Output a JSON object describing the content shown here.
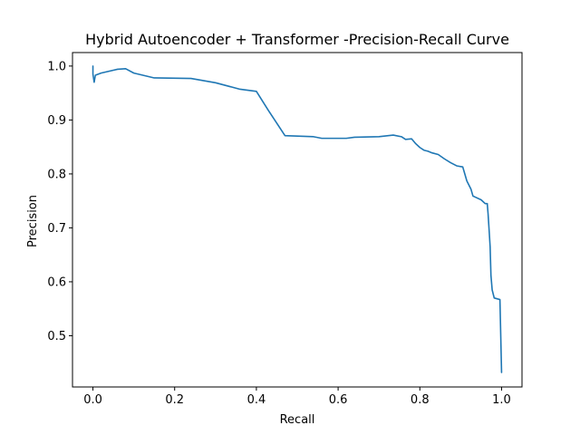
{
  "chart_data": {
    "type": "line",
    "title": "Hybrid Autoencoder + Transformer -Precision-Recall Curve",
    "xlabel": "Recall",
    "ylabel": "Precision",
    "xlim": [
      -0.05,
      1.05
    ],
    "ylim": [
      0.405,
      1.025
    ],
    "xticks": [
      0.0,
      0.2,
      0.4,
      0.6,
      0.8,
      1.0
    ],
    "xtick_labels": [
      "0.0",
      "0.2",
      "0.4",
      "0.6",
      "0.8",
      "1.0"
    ],
    "yticks": [
      0.5,
      0.6,
      0.7,
      0.8,
      0.9,
      1.0
    ],
    "ytick_labels": [
      "0.5",
      "0.6",
      "0.7",
      "0.8",
      "0.9",
      "1.0"
    ],
    "grid": false,
    "series": [
      {
        "color": "#1f77b4",
        "points": [
          [
            0.0,
            1.0
          ],
          [
            0.0,
            0.985
          ],
          [
            0.003,
            0.97
          ],
          [
            0.006,
            0.983
          ],
          [
            0.02,
            0.987
          ],
          [
            0.06,
            0.994
          ],
          [
            0.08,
            0.995
          ],
          [
            0.1,
            0.987
          ],
          [
            0.15,
            0.978
          ],
          [
            0.24,
            0.977
          ],
          [
            0.3,
            0.969
          ],
          [
            0.36,
            0.957
          ],
          [
            0.4,
            0.953
          ],
          [
            0.43,
            0.917
          ],
          [
            0.47,
            0.871
          ],
          [
            0.54,
            0.869
          ],
          [
            0.56,
            0.866
          ],
          [
            0.62,
            0.866
          ],
          [
            0.64,
            0.868
          ],
          [
            0.7,
            0.869
          ],
          [
            0.735,
            0.872
          ],
          [
            0.755,
            0.869
          ],
          [
            0.765,
            0.864
          ],
          [
            0.78,
            0.865
          ],
          [
            0.79,
            0.856
          ],
          [
            0.8,
            0.849
          ],
          [
            0.81,
            0.844
          ],
          [
            0.82,
            0.842
          ],
          [
            0.83,
            0.839
          ],
          [
            0.845,
            0.836
          ],
          [
            0.86,
            0.828
          ],
          [
            0.875,
            0.821
          ],
          [
            0.89,
            0.815
          ],
          [
            0.905,
            0.813
          ],
          [
            0.91,
            0.8
          ],
          [
            0.915,
            0.787
          ],
          [
            0.925,
            0.772
          ],
          [
            0.93,
            0.759
          ],
          [
            0.95,
            0.752
          ],
          [
            0.96,
            0.745
          ],
          [
            0.965,
            0.745
          ],
          [
            0.967,
            0.726
          ],
          [
            0.97,
            0.69
          ],
          [
            0.972,
            0.665
          ],
          [
            0.974,
            0.612
          ],
          [
            0.977,
            0.585
          ],
          [
            0.982,
            0.57
          ],
          [
            0.996,
            0.567
          ],
          [
            0.998,
            0.5
          ],
          [
            1.0,
            0.432
          ]
        ]
      }
    ]
  }
}
